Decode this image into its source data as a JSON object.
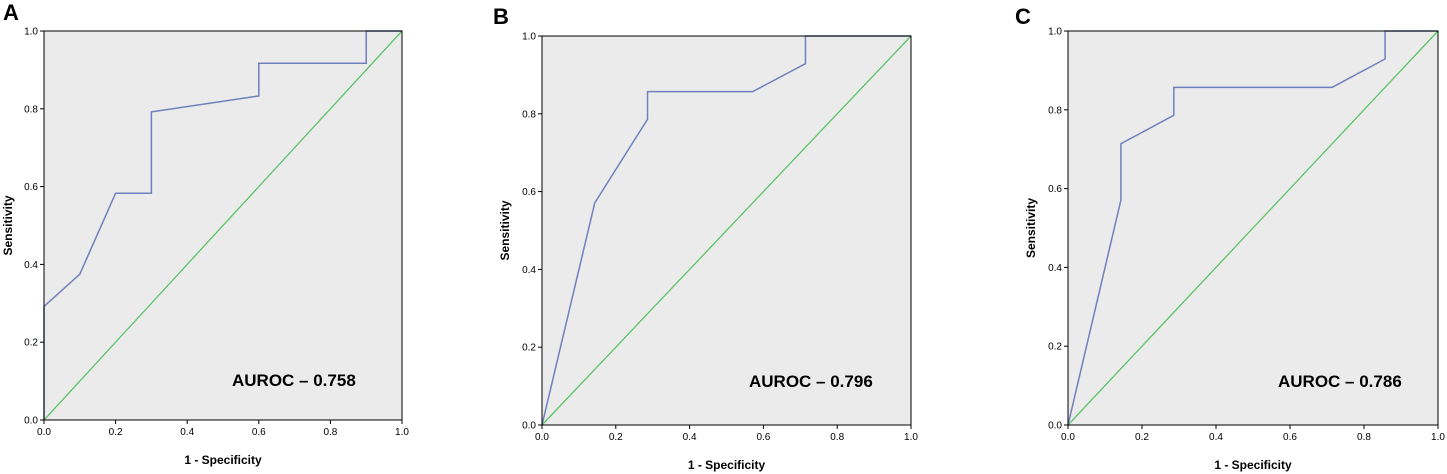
{
  "panels": [
    {
      "letter": "A"
    },
    {
      "letter": "B"
    },
    {
      "letter": "C"
    }
  ],
  "colors": {
    "roc_curve": "#6f80bd",
    "reference_line": "#5ec46a",
    "plot_background": "#ebebeb",
    "frame": "#000000"
  },
  "chart_data": [
    {
      "type": "line",
      "xlabel": "1 - Specificity",
      "ylabel": "Sensitivity",
      "xlim": [
        0,
        1
      ],
      "ylim": [
        0,
        1
      ],
      "xticks": [
        "0.0",
        "0.2",
        "0.4",
        "0.6",
        "0.8",
        "1.0"
      ],
      "yticks": [
        "0.0",
        "0.2",
        "0.4",
        "0.6",
        "0.8",
        "1.0"
      ],
      "annotation": "AUROC – 0.758",
      "series": [
        {
          "x": [
            0,
            0,
            0.1,
            0.2,
            0.3,
            0.3,
            0.6,
            0.6,
            0.9,
            0.9,
            1.0
          ],
          "y": [
            0,
            0.292,
            0.375,
            0.583,
            0.583,
            0.792,
            0.833,
            0.917,
            0.917,
            1.0,
            1.0
          ]
        },
        {
          "x": [
            0,
            1
          ],
          "y": [
            0,
            1
          ]
        }
      ]
    },
    {
      "type": "line",
      "xlabel": "1 - Specificity",
      "ylabel": "Sensitivity",
      "xlim": [
        0,
        1
      ],
      "ylim": [
        0,
        1
      ],
      "xticks": [
        "0.0",
        "0.2",
        "0.4",
        "0.6",
        "0.8",
        "1.0"
      ],
      "yticks": [
        "0.0",
        "0.2",
        "0.4",
        "0.6",
        "0.8",
        "1.0"
      ],
      "annotation": "AUROC – 0.796",
      "series": [
        {
          "x": [
            0,
            0.143,
            0.286,
            0.286,
            0.571,
            0.714,
            0.714,
            1.0
          ],
          "y": [
            0,
            0.571,
            0.786,
            0.857,
            0.857,
            0.929,
            1.0,
            1.0
          ]
        },
        {
          "x": [
            0,
            1
          ],
          "y": [
            0,
            1
          ]
        }
      ]
    },
    {
      "type": "line",
      "xlabel": "1 - Specificity",
      "ylabel": "Sensitivity",
      "xlim": [
        0,
        1
      ],
      "ylim": [
        0,
        1
      ],
      "xticks": [
        "0.0",
        "0.2",
        "0.4",
        "0.6",
        "0.8",
        "1.0"
      ],
      "yticks": [
        "0.0",
        "0.2",
        "0.4",
        "0.6",
        "0.8",
        "1.0"
      ],
      "annotation": "AUROC – 0.786",
      "series": [
        {
          "x": [
            0,
            0.143,
            0.143,
            0.286,
            0.286,
            0.714,
            0.857,
            0.857,
            1.0
          ],
          "y": [
            0,
            0.571,
            0.714,
            0.786,
            0.857,
            0.857,
            0.929,
            1.0,
            1.0
          ]
        },
        {
          "x": [
            0,
            1
          ],
          "y": [
            0,
            1
          ]
        }
      ]
    }
  ]
}
